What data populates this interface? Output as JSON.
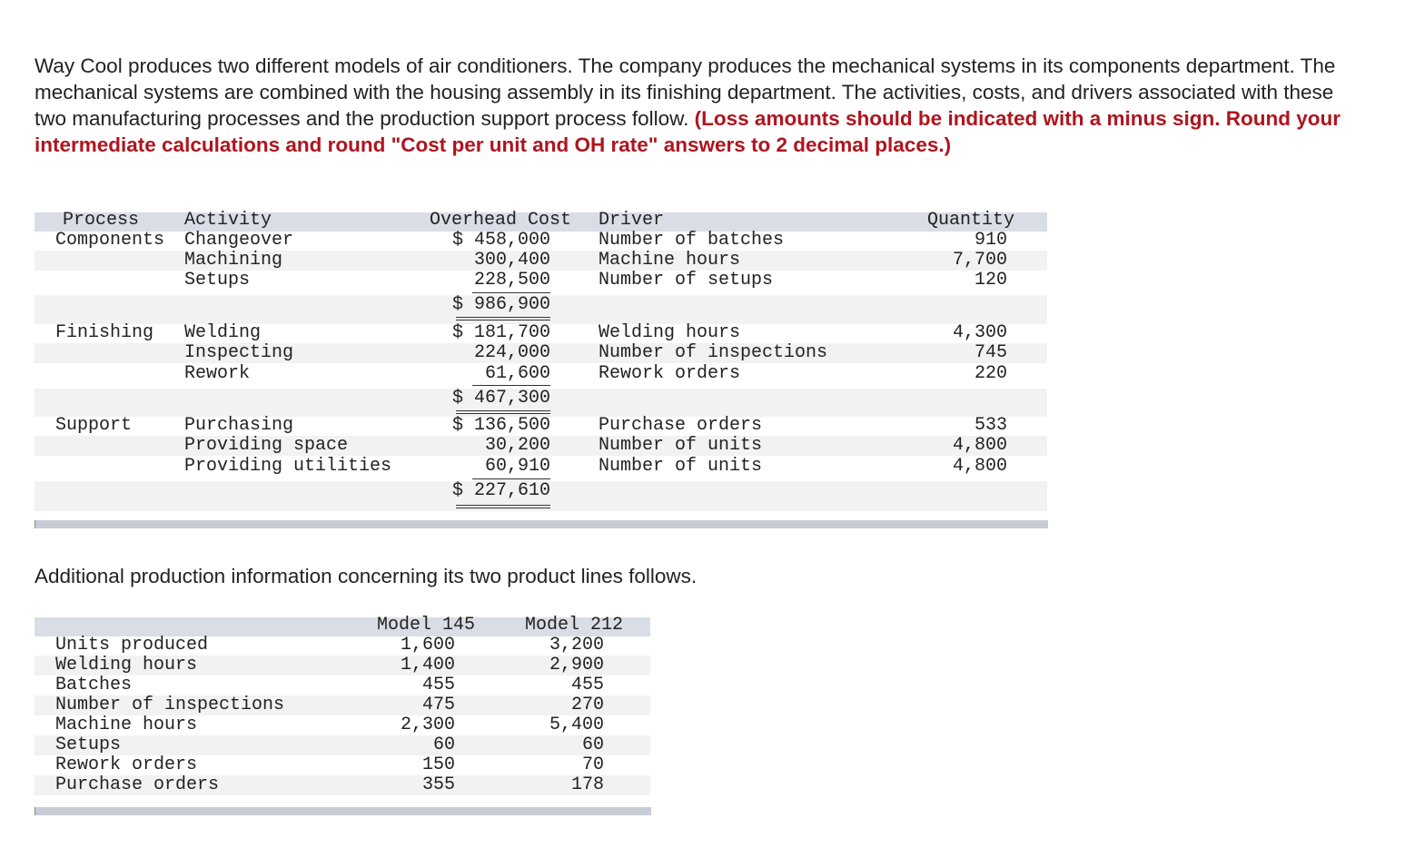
{
  "intro": {
    "text": "Way Cool produces two different models of air conditioners. The company produces the mechanical systems in its components department. The mechanical systems are combined with the housing assembly in its finishing department. The activities, costs, and drivers associated with these two manufacturing processes and the production support process follow. ",
    "instruction": "(Loss amounts should be indicated with a minus sign. Round your intermediate calculations and round \"Cost per unit and OH rate\" answers to 2 decimal places.)"
  },
  "table1": {
    "header": {
      "process": "Process",
      "activity": "Activity",
      "cost": "Overhead Cost",
      "driver": "Driver",
      "quantity": "Quantity"
    },
    "rows": [
      {
        "process": "Components",
        "activity": "Changeover",
        "cost": "$ 458,000",
        "driver": "Number of batches",
        "quantity": "910"
      },
      {
        "activity": "Machining",
        "cost": "300,400",
        "driver": "Machine hours",
        "quantity": "7,700"
      },
      {
        "activity": "Setups",
        "cost": "228,500",
        "driver": "Number of setups",
        "quantity": "120"
      },
      {
        "cost": "$ 986,900"
      },
      {
        "process": "Finishing",
        "activity": "Welding",
        "cost": "$ 181,700",
        "driver": "Welding hours",
        "quantity": "4,300"
      },
      {
        "activity": "Inspecting",
        "cost": "224,000",
        "driver": "Number of inspections",
        "quantity": "745"
      },
      {
        "activity": "Rework",
        "cost": "61,600",
        "driver": "Rework orders",
        "quantity": "220"
      },
      {
        "cost": "$ 467,300"
      },
      {
        "process": "Support",
        "activity": "Purchasing",
        "cost": "$ 136,500",
        "driver": "Purchase orders",
        "quantity": "533"
      },
      {
        "activity": "Providing space",
        "cost": "30,200",
        "driver": "Number of units",
        "quantity": "4,800"
      },
      {
        "activity": "Providing utilities",
        "cost": "60,910",
        "driver": "Number of units",
        "quantity": "4,800"
      },
      {
        "cost": "$ 227,610"
      }
    ]
  },
  "para2": "Additional production information concerning its two product lines follows.",
  "table2": {
    "header": [
      "Model 145",
      "Model 212"
    ],
    "rows": [
      [
        "Units produced",
        "1,600",
        "3,200"
      ],
      [
        "Welding hours",
        "1,400",
        "2,900"
      ],
      [
        "Batches",
        "455",
        "455"
      ],
      [
        "Number of inspections",
        "475",
        "270"
      ],
      [
        "Machine hours",
        "2,300",
        "5,400"
      ],
      [
        "Setups",
        "60",
        "60"
      ],
      [
        "Rework orders",
        "150",
        "70"
      ],
      [
        "Purchase orders",
        "355",
        "178"
      ]
    ]
  }
}
